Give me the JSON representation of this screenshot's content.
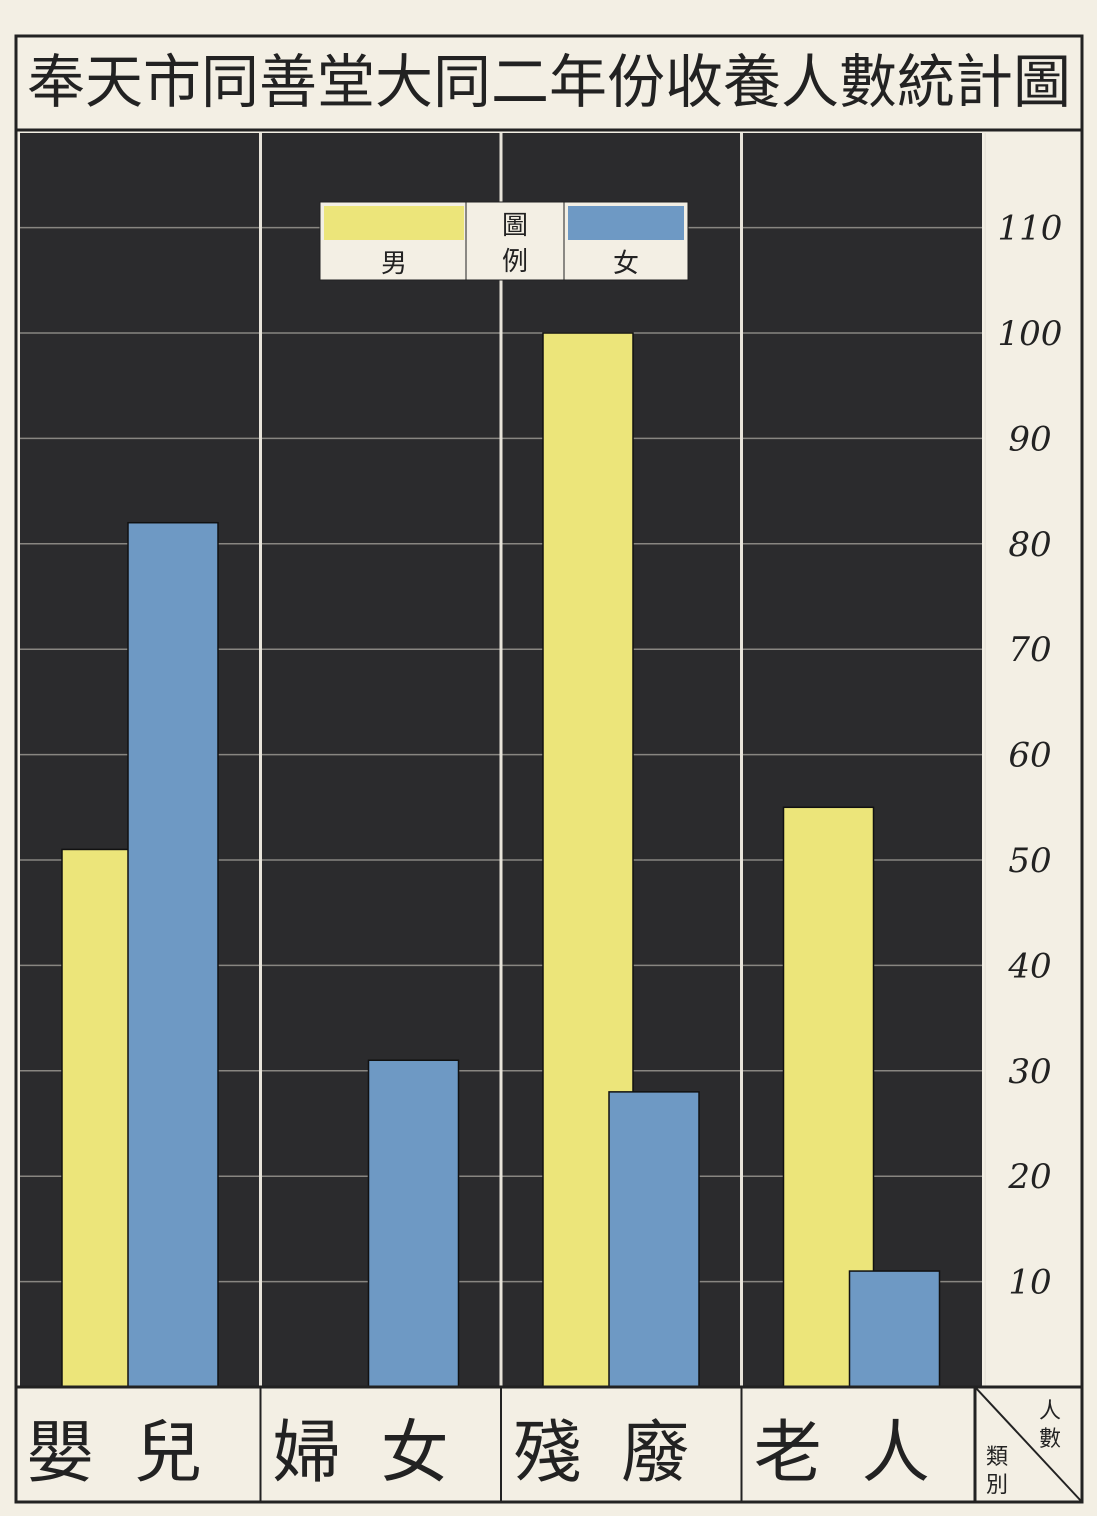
{
  "title": "奉天市同善堂大同二年份收養人數統計圖",
  "colors": {
    "paper": "#f3efe4",
    "plot_bg": "#2b2b2d",
    "male": "#ece57a",
    "female": "#6e99c4",
    "grid": "#d6d2c6",
    "ink": "#222222"
  },
  "legend": {
    "heading": "圖例",
    "male_label": "男",
    "female_label": "女"
  },
  "axis": {
    "unit_label": "人數",
    "category_label": "類別"
  },
  "chart_data": {
    "type": "bar",
    "title": "奉天市同善堂大同二年份收養人數統計圖",
    "categories": [
      "嬰兒",
      "婦女",
      "殘廢",
      "老人"
    ],
    "series": [
      {
        "name": "男",
        "values": [
          51,
          0,
          100,
          55
        ]
      },
      {
        "name": "女",
        "values": [
          82,
          31,
          28,
          11
        ]
      }
    ],
    "yticks": [
      10,
      20,
      30,
      40,
      50,
      60,
      70,
      80,
      90,
      100,
      110
    ],
    "ylim": [
      0,
      120
    ],
    "ylabel": "人數",
    "xlabel": "類別",
    "legend_position": "top-center",
    "grid": true
  }
}
